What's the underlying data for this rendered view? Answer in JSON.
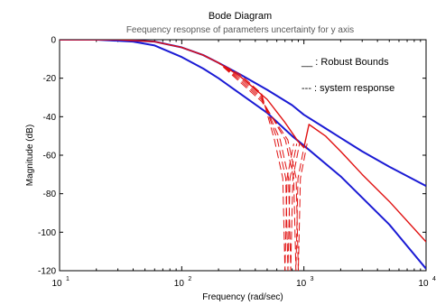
{
  "chart_data": {
    "type": "line",
    "title": "Bode Diagram",
    "subtitle": "Feequency resopnse of parameters uncertainty for y axis",
    "xlabel": "Frequency  (rad/sec)",
    "ylabel": "Magnitude (dB)",
    "xscale": "log",
    "xlim": [
      10,
      10000
    ],
    "ylim": [
      -120,
      0
    ],
    "x_ticks": [
      {
        "value": 10,
        "base": "10",
        "exp": "1"
      },
      {
        "value": 100,
        "base": "10",
        "exp": "2"
      },
      {
        "value": 1000,
        "base": "10",
        "exp": "3"
      },
      {
        "value": 10000,
        "base": "10",
        "exp": "4"
      }
    ],
    "y_ticks": [
      0,
      -20,
      -40,
      -60,
      -80,
      -100,
      -120
    ],
    "legend": [
      "__ : Robust Bounds",
      "--- : system response"
    ],
    "colors": {
      "bounds": "#1a1ad4",
      "response": "#e01010",
      "axes": "#000000"
    },
    "series": [
      {
        "name": "Robust Bounds",
        "role": "upper-bound",
        "x": [
          10,
          30,
          60,
          100,
          150,
          200,
          300,
          500,
          800,
          1000,
          1500,
          2000,
          3000,
          5000,
          10000
        ],
        "y": [
          0,
          0,
          -1,
          -4,
          -8,
          -12,
          -18,
          -26,
          -34,
          -39,
          -46,
          -51,
          -58,
          -66,
          -76
        ]
      },
      {
        "name": "Robust Bounds",
        "role": "lower-bound",
        "x": [
          10,
          20,
          40,
          60,
          100,
          150,
          200,
          300,
          500,
          800,
          1000,
          2000,
          5000,
          10000
        ],
        "y": [
          0,
          0,
          -1,
          -3,
          -9,
          -15,
          -20,
          -28,
          -38,
          -50,
          -55,
          -71,
          -96,
          -119
        ]
      },
      {
        "name": "system response",
        "role": "continuous-branch",
        "x": [
          10,
          30,
          60,
          100,
          150,
          200,
          300,
          500,
          700,
          900,
          1000,
          1100,
          1500,
          2000,
          3000,
          5000,
          10000
        ],
        "y": [
          0,
          0,
          -1,
          -4,
          -8,
          -12,
          -19,
          -31,
          -43,
          -53,
          -56,
          -44,
          -50,
          -58,
          -70,
          -84,
          -105
        ]
      },
      {
        "name": "system response",
        "role": "notch-variants",
        "notches": [
          {
            "center": 700,
            "depth": -120
          },
          {
            "center": 740,
            "depth": -120
          },
          {
            "center": 780,
            "depth": -120
          },
          {
            "center": 860,
            "depth": -120
          },
          {
            "center": 900,
            "depth": -120
          }
        ]
      }
    ],
    "grid": false,
    "legend_position": "top-right"
  }
}
